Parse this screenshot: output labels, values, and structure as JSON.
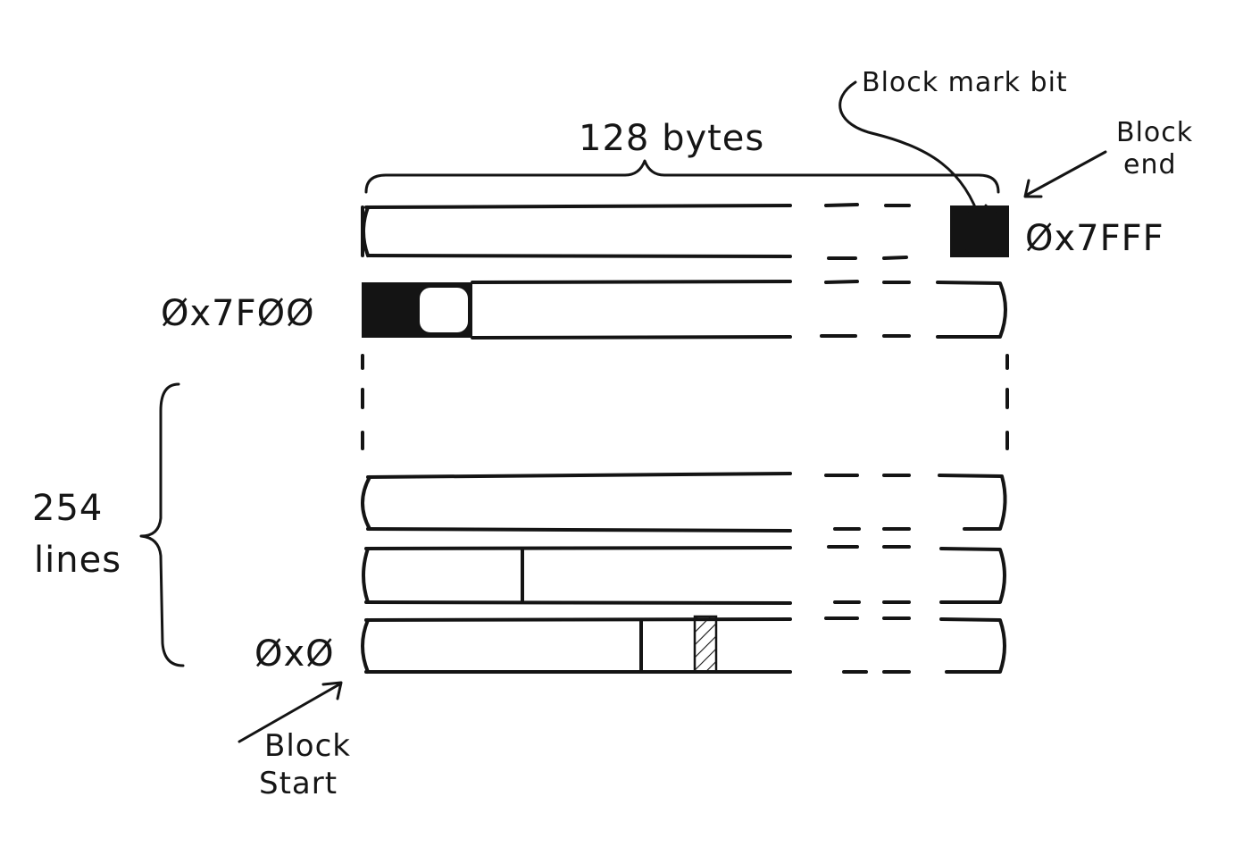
{
  "labels": {
    "block_mark_bit": "Block mark bit",
    "bytes_per_line": "128 bytes",
    "block_end_line1": "Block",
    "block_end_line2": "end",
    "end_address": "Øx7FFF",
    "last_line_address": "Øx7FØØ",
    "lines_count_line1": "254",
    "lines_count_line2": "lines",
    "start_address": "ØxØ",
    "block_start_line1": "Block",
    "block_start_line2": "Start"
  },
  "colors": {
    "ink": "#141414",
    "paper": "#ffffff"
  },
  "icons": {
    "hatch": "diagonal-hatch-pattern",
    "arrow": "hand-drawn-arrow"
  }
}
